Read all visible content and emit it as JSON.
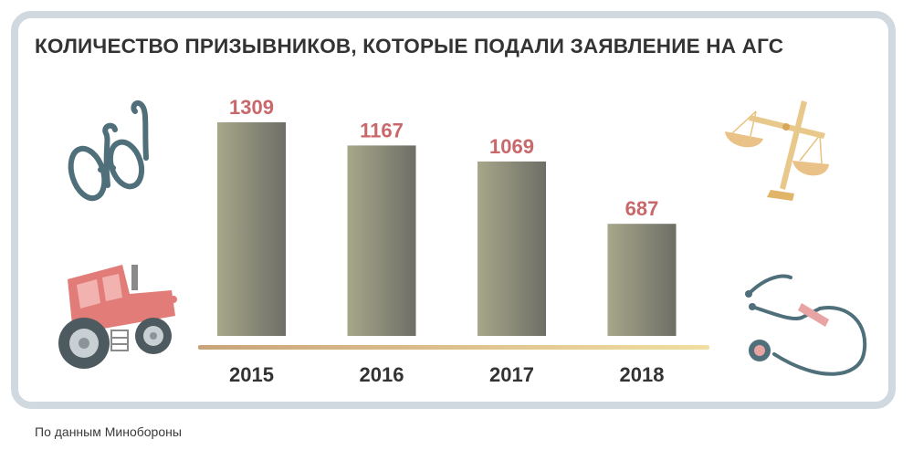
{
  "title": "КОЛИЧЕСТВО ПРИЗЫВНИКОВ, КОТОРЫЕ ПОДАЛИ ЗАЯВЛЕНИЕ НА АГС",
  "source": "По данным Минобороны",
  "colors": {
    "bar_light": "#a7a78a",
    "bar_dark": "#6e6e66",
    "value_label": "#c9686a",
    "baseline_left": "#c9a47a",
    "baseline_right": "#f1dea0",
    "card_border": "#cfd9df"
  },
  "icons": [
    "glasses-icon",
    "tractor-icon",
    "scales-icon",
    "stethoscope-icon"
  ],
  "chart_data": {
    "type": "bar",
    "title": "КОЛИЧЕСТВО ПРИЗЫВНИКОВ, КОТОРЫЕ ПОДАЛИ ЗАЯВЛЕНИЕ НА АГС",
    "categories": [
      "2015",
      "2016",
      "2017",
      "2018"
    ],
    "values": [
      1309,
      1167,
      1069,
      687
    ],
    "value_labels": [
      "1309",
      "1167",
      "1069",
      "687"
    ],
    "xlabel": "",
    "ylabel": "",
    "ylim": [
      0,
      1309
    ],
    "grid": false,
    "legend": "none"
  }
}
